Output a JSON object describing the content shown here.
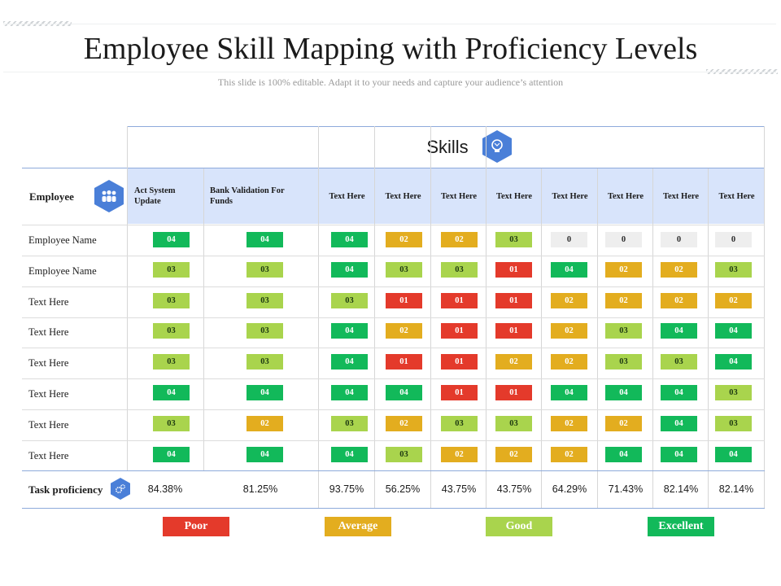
{
  "title": "Employee Skill Mapping with Proficiency Levels",
  "subtitle": "This slide is 100% editable. Adapt it to your needs and capture your audience’s attention",
  "skills_label": "Skills",
  "employee_header": "Employee",
  "columns": [
    "Act System Update",
    "Bank Validation For Funds",
    "Text Here",
    "Text Here",
    "Text Here",
    "Text Here",
    "Text Here",
    "Text Here",
    "Text Here",
    "Text Here"
  ],
  "rows": [
    {
      "label": "Employee Name",
      "cells": [
        "04",
        "04",
        "04",
        "02",
        "02",
        "03",
        "0",
        "0",
        "0",
        "0"
      ]
    },
    {
      "label": "Employee Name",
      "cells": [
        "03",
        "03",
        "04",
        "03",
        "03",
        "01",
        "04",
        "02",
        "02",
        "03"
      ]
    },
    {
      "label": "Text Here",
      "cells": [
        "03",
        "03",
        "03",
        "01",
        "01",
        "01",
        "02",
        "02",
        "02",
        "02"
      ]
    },
    {
      "label": "Text Here",
      "cells": [
        "03",
        "03",
        "04",
        "02",
        "01",
        "01",
        "02",
        "03",
        "04",
        "04"
      ]
    },
    {
      "label": "Text Here",
      "cells": [
        "03",
        "03",
        "04",
        "01",
        "01",
        "02",
        "02",
        "03",
        "03",
        "04"
      ]
    },
    {
      "label": "Text Here",
      "cells": [
        "04",
        "04",
        "04",
        "04",
        "01",
        "01",
        "04",
        "04",
        "04",
        "03"
      ]
    },
    {
      "label": "Text Here",
      "cells": [
        "03",
        "02",
        "03",
        "02",
        "03",
        "03",
        "02",
        "02",
        "04",
        "03"
      ]
    },
    {
      "label": "Text Here",
      "cells": [
        "04",
        "04",
        "04",
        "03",
        "02",
        "02",
        "02",
        "04",
        "04",
        "04"
      ]
    }
  ],
  "task_proficiency_label": "Task proficiency",
  "task_proficiency": [
    "84.38%",
    "81.25%",
    "93.75%",
    "56.25%",
    "43.75%",
    "43.75%",
    "64.29%",
    "71.43%",
    "82.14%",
    "82.14%"
  ],
  "legend": [
    {
      "label": "Poor",
      "color": "#e43a2b"
    },
    {
      "label": "Average",
      "color": "#e3ad1f"
    },
    {
      "label": "Good",
      "color": "#a9d44d"
    },
    {
      "label": "Excellent",
      "color": "#12b95a"
    }
  ],
  "level_colors": {
    "4": "#12b95a",
    "3": "#a9d44d",
    "2": "#e3ad1f",
    "1": "#e43a2b",
    "0": "#eeeeee"
  },
  "icons": {
    "skills": "lightbulb-icon",
    "employee": "people-group-icon",
    "task": "gears-icon"
  }
}
